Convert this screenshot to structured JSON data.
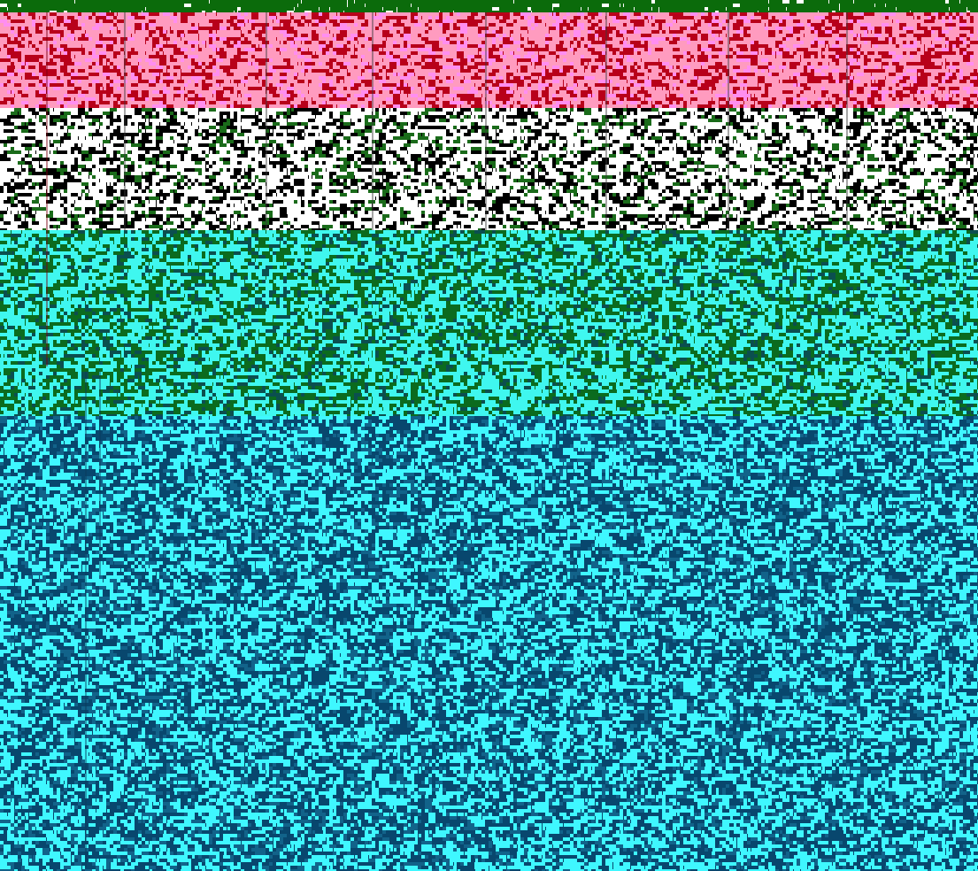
{
  "bands": [
    {
      "id": "top",
      "base": "#0b6b0b",
      "noise": "#ffffff",
      "density": 0.02
    },
    {
      "id": "red",
      "base": "#ff9bbf",
      "noise": "#b8001a",
      "alt": "#ff8ef0",
      "density": 0.34
    },
    {
      "id": "white",
      "base": "#ffffff",
      "noise": "#000000",
      "alt": "#1a6b1a",
      "density": 0.3
    },
    {
      "id": "green",
      "base": "#3ff7ef",
      "noise": "#0b6b1f",
      "alt": "#0b4f4f",
      "density": 0.36
    },
    {
      "id": "blue",
      "base": "#3ff7ff",
      "noise": "#08476e",
      "alt": "#12638a",
      "density": 0.42
    }
  ]
}
